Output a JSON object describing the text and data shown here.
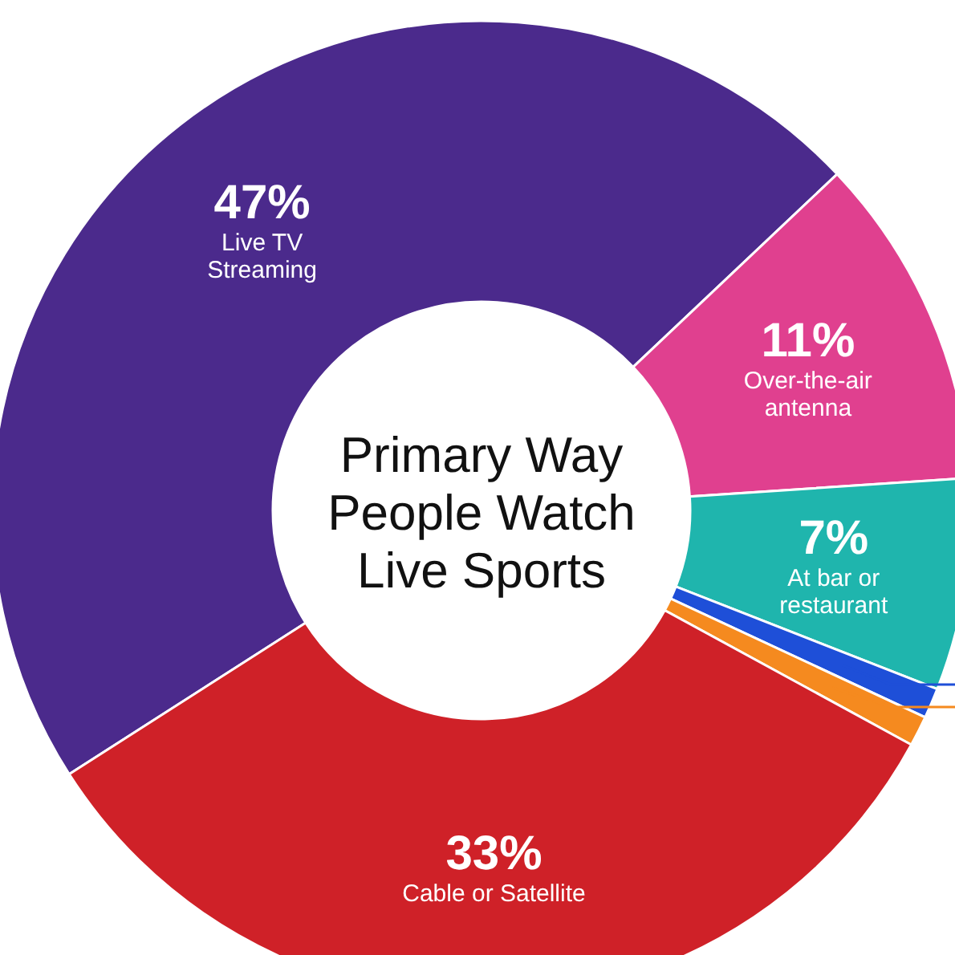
{
  "chart_data": {
    "type": "donut",
    "title": "Primary Way People Watch Live Sports",
    "categories": [
      "Live TV Streaming",
      "Over-the-air antenna",
      "At bar or restaurant",
      null,
      null,
      "Cable or Satellite"
    ],
    "values": [
      47,
      11,
      7,
      1,
      1,
      33
    ],
    "value_labels": [
      "47%",
      "11%",
      "7%",
      null,
      null,
      "33%"
    ],
    "colors": [
      "#4b2a8c",
      "#e0408f",
      "#1fb5ad",
      "#1e4fd8",
      "#f58a1f",
      "#cf2128"
    ]
  }
}
